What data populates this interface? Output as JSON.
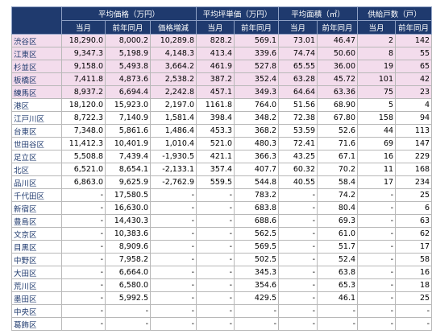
{
  "table": {
    "groups": [
      "平均価格（万円）",
      "平均坪単価（万円）",
      "平均面積（㎡）",
      "供給戸数（戸）"
    ],
    "subheaders": [
      "当月",
      "前年同月",
      "価格増減",
      "当月",
      "前年同月",
      "当月",
      "前年同月",
      "当月",
      "前年同月"
    ],
    "rows": [
      [
        "渋谷区",
        "18,290.0",
        "8,000.2",
        "10,289.8",
        "828.2",
        "569.1",
        "73.01",
        "46.47",
        "2",
        "142"
      ],
      [
        "江東区",
        "9,347.3",
        "5,198.9",
        "4,148.3",
        "413.4",
        "339.6",
        "74.74",
        "50.60",
        "8",
        "55"
      ],
      [
        "杉並区",
        "9,158.0",
        "5,493.8",
        "3,664.2",
        "461.9",
        "527.8",
        "65.55",
        "36.00",
        "19",
        "65"
      ],
      [
        "板橋区",
        "7,411.8",
        "4,873.6",
        "2,538.2",
        "387.2",
        "352.4",
        "63.28",
        "45.72",
        "101",
        "42"
      ],
      [
        "練馬区",
        "8,937.2",
        "6,694.4",
        "2,242.8",
        "457.1",
        "349.3",
        "64.64",
        "63.36",
        "75",
        "23"
      ],
      [
        "港区",
        "18,120.0",
        "15,923.0",
        "2,197.0",
        "1161.8",
        "764.0",
        "51.56",
        "68.90",
        "5",
        "4"
      ],
      [
        "江戸川区",
        "8,722.3",
        "7,140.9",
        "1,581.4",
        "398.4",
        "348.2",
        "72.38",
        "67.80",
        "158",
        "94"
      ],
      [
        "台東区",
        "7,348.0",
        "5,861.6",
        "1,486.4",
        "453.3",
        "368.2",
        "53.59",
        "52.6",
        "44",
        "113"
      ],
      [
        "世田谷区",
        "11,412.3",
        "10,401.9",
        "1,010.4",
        "521.0",
        "480.3",
        "72.41",
        "71.6",
        "69",
        "147"
      ],
      [
        "足立区",
        "5,508.8",
        "7,439.4",
        "-1,930.5",
        "421.1",
        "366.3",
        "43.25",
        "67.1",
        "16",
        "229"
      ],
      [
        "北区",
        "6,521.0",
        "8,654.1",
        "-2,133.1",
        "357.4",
        "407.7",
        "60.32",
        "70.2",
        "11",
        "168"
      ],
      [
        "品川区",
        "6,863.0",
        "9,625.9",
        "-2,762.9",
        "559.5",
        "544.8",
        "40.55",
        "58.4",
        "17",
        "234"
      ],
      [
        "千代田区",
        "-",
        "17,580.5",
        "-",
        "-",
        "783.2",
        "-",
        "74.2",
        "-",
        "25"
      ],
      [
        "新宿区",
        "-",
        "16,630.0",
        "-",
        "-",
        "683.8",
        "-",
        "80.4",
        "-",
        "6"
      ],
      [
        "豊島区",
        "-",
        "14,430.3",
        "-",
        "-",
        "688.6",
        "-",
        "69.3",
        "-",
        "63"
      ],
      [
        "文京区",
        "-",
        "10,383.6",
        "-",
        "-",
        "562.5",
        "-",
        "61.0",
        "-",
        "62"
      ],
      [
        "目黒区",
        "-",
        "8,909.6",
        "-",
        "-",
        "569.5",
        "-",
        "51.7",
        "-",
        "17"
      ],
      [
        "中野区",
        "-",
        "7,958.2",
        "-",
        "-",
        "502.5",
        "-",
        "52.4",
        "-",
        "58"
      ],
      [
        "大田区",
        "-",
        "6,664.0",
        "-",
        "-",
        "345.3",
        "-",
        "63.8",
        "-",
        "16"
      ],
      [
        "荒川区",
        "-",
        "6,580.0",
        "-",
        "-",
        "354.6",
        "-",
        "65.3",
        "-",
        "18"
      ],
      [
        "墨田区",
        "-",
        "5,992.5",
        "-",
        "-",
        "429.5",
        "-",
        "46.1",
        "-",
        "25"
      ],
      [
        "中央区",
        "-",
        "-",
        "-",
        "-",
        "-",
        "-",
        "-",
        "-",
        "-"
      ],
      [
        "葛飾区",
        "-",
        "-",
        "-",
        "-",
        "-",
        "-",
        "-",
        "-",
        "-"
      ]
    ]
  }
}
